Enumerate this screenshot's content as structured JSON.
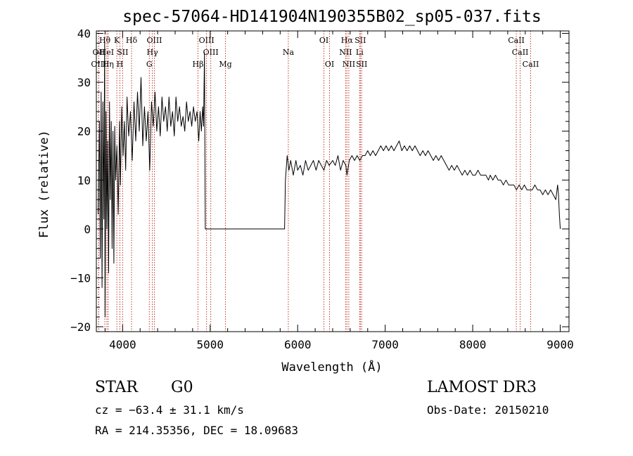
{
  "chart_data": {
    "type": "line",
    "title": "spec-57064-HD141904N190355B02_sp05-037.fits",
    "xlabel": "Wavelength (Å)",
    "ylabel": "Flux (relative)",
    "xlim": [
      3700,
      9100
    ],
    "ylim": [
      -21,
      40.5
    ],
    "xticks": [
      4000,
      5000,
      6000,
      7000,
      8000,
      9000
    ],
    "xtick_labels": [
      "4000",
      "5000",
      "6000",
      "7000",
      "8000",
      "9000"
    ],
    "yticks": [
      -20,
      -10,
      0,
      10,
      20,
      30,
      40
    ],
    "ytick_labels": [
      "−20",
      "−10",
      "0",
      "10",
      "20",
      "30",
      "40"
    ],
    "grid": false,
    "series": [
      {
        "name": "flux",
        "points": [
          [
            3720,
            3
          ],
          [
            3735,
            22
          ],
          [
            3745,
            -6
          ],
          [
            3755,
            28
          ],
          [
            3765,
            -12
          ],
          [
            3775,
            26
          ],
          [
            3785,
            2
          ],
          [
            3795,
            38
          ],
          [
            3800,
            -18
          ],
          [
            3810,
            24
          ],
          [
            3820,
            0
          ],
          [
            3830,
            18
          ],
          [
            3840,
            -9
          ],
          [
            3850,
            26
          ],
          [
            3860,
            6
          ],
          [
            3870,
            22
          ],
          [
            3880,
            -4
          ],
          [
            3890,
            20
          ],
          [
            3900,
            -7
          ],
          [
            3910,
            21
          ],
          [
            3920,
            10
          ],
          [
            3935,
            17
          ],
          [
            3950,
            3
          ],
          [
            3965,
            22
          ],
          [
            3975,
            9
          ],
          [
            3990,
            25
          ],
          [
            4005,
            15
          ],
          [
            4020,
            22
          ],
          [
            4035,
            12
          ],
          [
            4050,
            27
          ],
          [
            4070,
            19
          ],
          [
            4090,
            24
          ],
          [
            4110,
            14
          ],
          [
            4130,
            26
          ],
          [
            4150,
            18
          ],
          [
            4170,
            28
          ],
          [
            4190,
            20
          ],
          [
            4210,
            31
          ],
          [
            4230,
            17
          ],
          [
            4250,
            25
          ],
          [
            4270,
            18
          ],
          [
            4290,
            24
          ],
          [
            4310,
            12
          ],
          [
            4330,
            26
          ],
          [
            4350,
            21
          ],
          [
            4370,
            28
          ],
          [
            4390,
            20
          ],
          [
            4410,
            25
          ],
          [
            4430,
            19
          ],
          [
            4450,
            27
          ],
          [
            4470,
            22
          ],
          [
            4490,
            25
          ],
          [
            4510,
            20
          ],
          [
            4530,
            27
          ],
          [
            4550,
            21
          ],
          [
            4570,
            24
          ],
          [
            4590,
            19
          ],
          [
            4610,
            27
          ],
          [
            4630,
            22
          ],
          [
            4650,
            25
          ],
          [
            4670,
            21
          ],
          [
            4690,
            23
          ],
          [
            4710,
            20
          ],
          [
            4730,
            26
          ],
          [
            4750,
            22
          ],
          [
            4770,
            24
          ],
          [
            4790,
            21
          ],
          [
            4810,
            25
          ],
          [
            4830,
            22
          ],
          [
            4850,
            24
          ],
          [
            4870,
            18
          ],
          [
            4885,
            24
          ],
          [
            4900,
            20
          ],
          [
            4915,
            25
          ],
          [
            4925,
            21
          ],
          [
            4935,
            36
          ],
          [
            4945,
            0
          ],
          [
            5000,
            0
          ],
          [
            5200,
            0
          ],
          [
            5400,
            0
          ],
          [
            5600,
            0
          ],
          [
            5800,
            0
          ],
          [
            5850,
            0
          ],
          [
            5860,
            10
          ],
          [
            5880,
            15
          ],
          [
            5900,
            12
          ],
          [
            5920,
            14
          ],
          [
            5950,
            11
          ],
          [
            5980,
            14
          ],
          [
            6000,
            12
          ],
          [
            6030,
            13
          ],
          [
            6060,
            11
          ],
          [
            6090,
            14
          ],
          [
            6120,
            12
          ],
          [
            6150,
            13
          ],
          [
            6180,
            14
          ],
          [
            6210,
            12
          ],
          [
            6240,
            14
          ],
          [
            6270,
            13
          ],
          [
            6300,
            12
          ],
          [
            6330,
            14
          ],
          [
            6360,
            13
          ],
          [
            6400,
            14
          ],
          [
            6430,
            13
          ],
          [
            6460,
            15
          ],
          [
            6490,
            12
          ],
          [
            6520,
            14
          ],
          [
            6550,
            13
          ],
          [
            6563,
            11
          ],
          [
            6590,
            14
          ],
          [
            6620,
            15
          ],
          [
            6650,
            14
          ],
          [
            6680,
            15
          ],
          [
            6710,
            14
          ],
          [
            6740,
            15
          ],
          [
            6770,
            15
          ],
          [
            6800,
            16
          ],
          [
            6830,
            15
          ],
          [
            6860,
            16
          ],
          [
            6890,
            15
          ],
          [
            6920,
            16
          ],
          [
            6950,
            17
          ],
          [
            6980,
            16
          ],
          [
            7010,
            17
          ],
          [
            7040,
            16
          ],
          [
            7070,
            17
          ],
          [
            7100,
            16
          ],
          [
            7130,
            17
          ],
          [
            7160,
            18
          ],
          [
            7190,
            16
          ],
          [
            7220,
            17
          ],
          [
            7250,
            16
          ],
          [
            7280,
            17
          ],
          [
            7310,
            16
          ],
          [
            7340,
            17
          ],
          [
            7370,
            16
          ],
          [
            7400,
            15
          ],
          [
            7430,
            16
          ],
          [
            7460,
            15
          ],
          [
            7490,
            16
          ],
          [
            7520,
            15
          ],
          [
            7550,
            14
          ],
          [
            7580,
            15
          ],
          [
            7610,
            14
          ],
          [
            7640,
            15
          ],
          [
            7670,
            14
          ],
          [
            7700,
            13
          ],
          [
            7730,
            12
          ],
          [
            7760,
            13
          ],
          [
            7790,
            12
          ],
          [
            7820,
            13
          ],
          [
            7850,
            12
          ],
          [
            7880,
            11
          ],
          [
            7910,
            12
          ],
          [
            7940,
            11
          ],
          [
            7970,
            12
          ],
          [
            8000,
            11
          ],
          [
            8030,
            11
          ],
          [
            8060,
            12
          ],
          [
            8090,
            11
          ],
          [
            8120,
            11
          ],
          [
            8150,
            11
          ],
          [
            8180,
            10
          ],
          [
            8200,
            11
          ],
          [
            8230,
            10
          ],
          [
            8260,
            11
          ],
          [
            8290,
            10
          ],
          [
            8320,
            10
          ],
          [
            8350,
            9
          ],
          [
            8380,
            10
          ],
          [
            8410,
            9
          ],
          [
            8440,
            9
          ],
          [
            8470,
            9
          ],
          [
            8500,
            8
          ],
          [
            8530,
            9
          ],
          [
            8560,
            8
          ],
          [
            8590,
            9
          ],
          [
            8620,
            8
          ],
          [
            8650,
            8
          ],
          [
            8680,
            8
          ],
          [
            8710,
            9
          ],
          [
            8740,
            8
          ],
          [
            8770,
            8
          ],
          [
            8800,
            7
          ],
          [
            8830,
            8
          ],
          [
            8860,
            7
          ],
          [
            8890,
            8
          ],
          [
            8920,
            7
          ],
          [
            8950,
            6
          ],
          [
            8970,
            9
          ],
          [
            8980,
            7
          ],
          [
            8990,
            3
          ],
          [
            9000,
            0
          ]
        ]
      }
    ],
    "line_markers": [
      {
        "name": "Hθ",
        "x": 3797,
        "row": 0
      },
      {
        "name": "OII",
        "x": 3727,
        "row": 1
      },
      {
        "name": "HeI",
        "x": 3820,
        "row": 1
      },
      {
        "name": "OIII",
        "x": 3727,
        "row": 2
      },
      {
        "name": "Hη",
        "x": 3835,
        "row": 2
      },
      {
        "name": "K",
        "x": 3934,
        "row": 0
      },
      {
        "name": "SII",
        "x": 4000,
        "row": 1
      },
      {
        "name": "H",
        "x": 3969,
        "row": 2
      },
      {
        "name": "Hδ",
        "x": 4102,
        "row": 0
      },
      {
        "name": "OIII",
        "x": 4363,
        "row": 0
      },
      {
        "name": "Hγ",
        "x": 4340,
        "row": 1
      },
      {
        "name": "G",
        "x": 4305,
        "row": 2
      },
      {
        "name": "Hβ",
        "x": 4861,
        "row": 2
      },
      {
        "name": "OIII",
        "x": 4959,
        "row": 0
      },
      {
        "name": "OIII",
        "x": 5007,
        "row": 1
      },
      {
        "name": "Mg",
        "x": 5175,
        "row": 2
      },
      {
        "name": "Na",
        "x": 5893,
        "row": 1
      },
      {
        "name": "OI",
        "x": 6300,
        "row": 0
      },
      {
        "name": "OI",
        "x": 6364,
        "row": 2
      },
      {
        "name": "Hα",
        "x": 6563,
        "row": 0
      },
      {
        "name": "NII",
        "x": 6548,
        "row": 1
      },
      {
        "name": "NII",
        "x": 6584,
        "row": 2
      },
      {
        "name": "SII",
        "x": 6716,
        "row": 0
      },
      {
        "name": "Li",
        "x": 6708,
        "row": 1
      },
      {
        "name": "SII",
        "x": 6731,
        "row": 2
      },
      {
        "name": "CaII",
        "x": 8498,
        "row": 0
      },
      {
        "name": "CaII",
        "x": 8542,
        "row": 1
      },
      {
        "name": "CaII",
        "x": 8662,
        "row": 2
      }
    ]
  },
  "footer": {
    "class_label": "STAR",
    "subclass": "G0",
    "cz": "cz = −63.4 ± 31.1 km/s",
    "coords": "RA = 214.35356, DEC =  18.09683",
    "survey": "LAMOST DR3",
    "obs_date": "Obs-Date: 20150210"
  }
}
